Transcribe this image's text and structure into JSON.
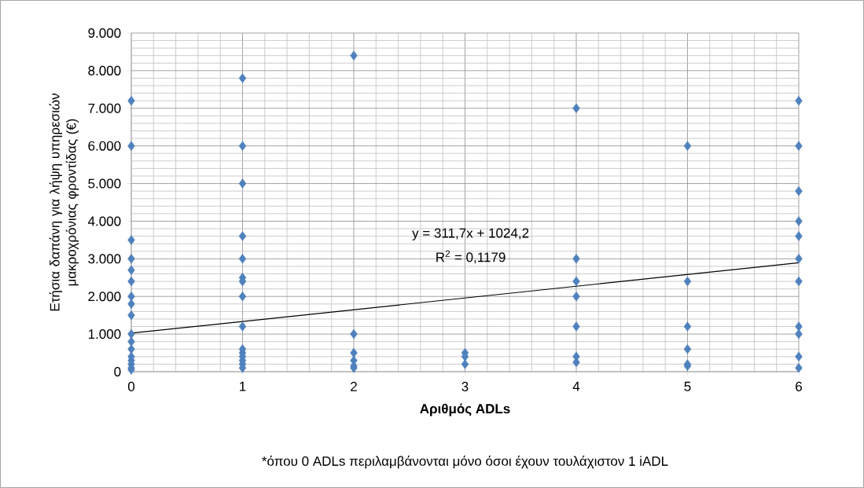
{
  "chart_data": {
    "type": "scatter",
    "xlabel": "Αριθμός ADLs",
    "ylabel": "Ετήσια δαπάνη για λήψη υπηρεσιών μακροχρόνιας φροντίδας (€)",
    "annotations": [
      "y = 311,7x + 1024,2",
      "R$^{2}$ = 0,1179",
      "*όπου 0 ADLs  περιλαμβάνονται μόνο όσοι έχουν τουλάχιστον 1 iADL"
    ],
    "series": [
      {
        "color": "#4f81bd",
        "marker": "diamond",
        "x": [
          0,
          0,
          0,
          0,
          0,
          0,
          0,
          0,
          0,
          0,
          0,
          0,
          0,
          0,
          0,
          0,
          0,
          1,
          1,
          1,
          1,
          1,
          1,
          1,
          1,
          1,
          1,
          1,
          1,
          1,
          1,
          1,
          2,
          2,
          2,
          2,
          2,
          2,
          3,
          3,
          3,
          4,
          4,
          4,
          4,
          4,
          4,
          4,
          5,
          5,
          5,
          5,
          5,
          5,
          6,
          6,
          6,
          6,
          6,
          6,
          6,
          6,
          6,
          6,
          6
        ],
        "values": [
          7200,
          6000,
          3500,
          3000,
          2700,
          2400,
          2000,
          1800,
          1500,
          1000,
          800,
          600,
          400,
          300,
          200,
          100,
          50,
          7800,
          6000,
          5000,
          3600,
          3000,
          2500,
          2400,
          2000,
          1200,
          600,
          500,
          400,
          300,
          200,
          100,
          8400,
          1000,
          500,
          300,
          150,
          100,
          500,
          400,
          200,
          7000,
          3000,
          2400,
          2000,
          1200,
          400,
          250,
          6000,
          2400,
          1200,
          600,
          200,
          150,
          7200,
          6000,
          4800,
          4000,
          3600,
          3000,
          2400,
          1200,
          1000,
          400,
          100
        ]
      },
      {
        "type": "line",
        "color": "#000000",
        "marker": "none",
        "x": [
          0,
          6
        ],
        "values": [
          1024,
          2894
        ]
      }
    ],
    "xlim": [
      0,
      6
    ],
    "xticks": [
      0,
      1,
      2,
      3,
      4,
      5,
      6
    ],
    "ylim": [
      0,
      9000
    ],
    "yticks": [
      {
        "value": 0,
        "label": "0"
      },
      {
        "value": 1000,
        "label": "1.000"
      },
      {
        "value": 2000,
        "label": "2.000"
      },
      {
        "value": 3000,
        "label": "3.000"
      },
      {
        "value": 4000,
        "label": "4.000"
      },
      {
        "value": 5000,
        "label": "5.000"
      },
      {
        "value": 6000,
        "label": "6.000"
      },
      {
        "value": 7000,
        "label": "7.000"
      },
      {
        "value": 8000,
        "label": "8.000"
      },
      {
        "value": 9000,
        "label": "9.000"
      }
    ],
    "grid": true
  }
}
